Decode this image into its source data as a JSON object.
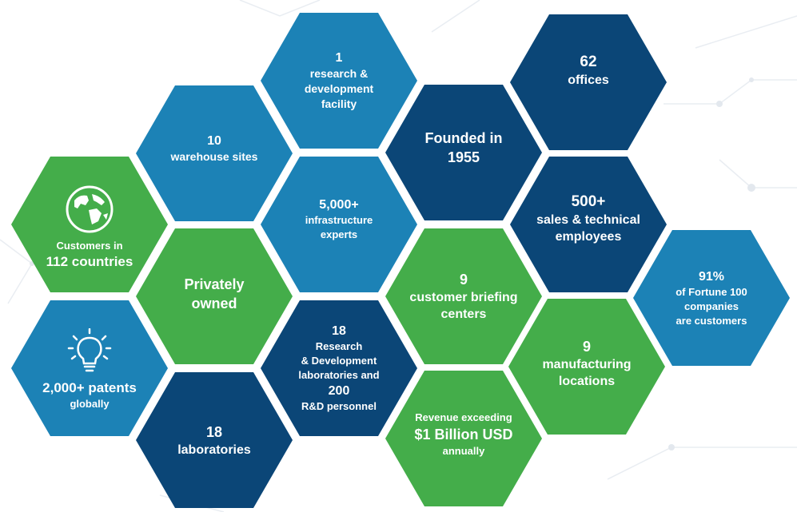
{
  "hexagons": {
    "rd_facility": {
      "number": "1",
      "line1": "research &",
      "line2": "development",
      "line3": "facility"
    },
    "offices": {
      "number": "62",
      "label": "offices"
    },
    "warehouse": {
      "number": "10",
      "label": "warehouse sites"
    },
    "founded": {
      "line1": "Founded in",
      "line2": "1955"
    },
    "customers": {
      "line1": "Customers in",
      "line2": "112 countries",
      "icon": "globe-icon"
    },
    "infrastructure": {
      "number": "5,000+",
      "line1": "infrastructure",
      "line2": "experts"
    },
    "sales": {
      "number": "500+",
      "line1": "sales & technical",
      "line2": "employees"
    },
    "private": {
      "line1": "Privately",
      "line2": "owned"
    },
    "briefing": {
      "number": "9",
      "line1": "customer briefing",
      "line2": "centers"
    },
    "fortune": {
      "number": "91%",
      "line1": "of Fortune 100",
      "line2": "companies",
      "line3": "are customers"
    },
    "rd_labs": {
      "number": "18",
      "line1": "Research",
      "line2": "& Development",
      "line3": "laboratories and",
      "number2": "200",
      "line4": "R&D personnel"
    },
    "manufacturing": {
      "number": "9",
      "line1": "manufacturing",
      "line2": "locations"
    },
    "patents": {
      "line1": "2,000+ patents",
      "line2": "globally",
      "icon": "lightbulb-icon"
    },
    "laboratories": {
      "number": "18",
      "label": "laboratories"
    },
    "revenue": {
      "line1": "Revenue exceeding",
      "line2": "$1 Billion USD",
      "line3": "annually"
    }
  },
  "colors": {
    "green": "#44ad4a",
    "mid_blue": "#1c82b6",
    "dark_blue": "#0b4677"
  }
}
